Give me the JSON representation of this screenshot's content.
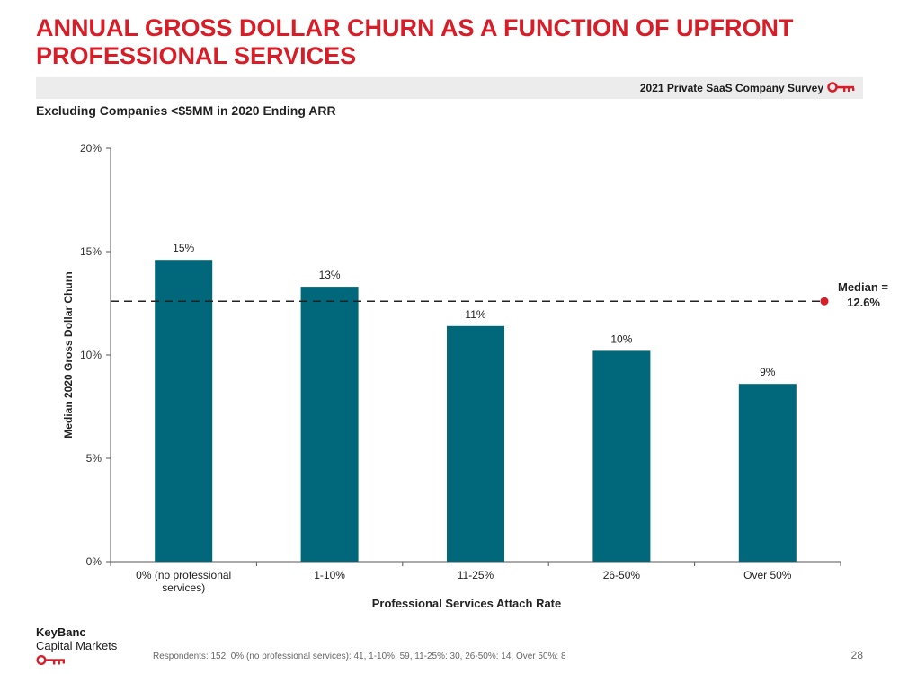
{
  "header": {
    "title": "ANNUAL GROSS DOLLAR CHURN AS A FUNCTION OF UPFRONT PROFESSIONAL SERVICES",
    "survey_label": "2021 Private SaaS Company Survey",
    "subtitle": "Excluding Companies <$5MM in 2020 Ending ARR"
  },
  "colors": {
    "title": "#d71e28",
    "bar": "#00687a",
    "median_marker": "#d71e28",
    "band": "#ececec"
  },
  "chart_data": {
    "type": "bar",
    "categories": [
      "0% (no professional services)",
      "1-10%",
      "11-25%",
      "26-50%",
      "Over 50%"
    ],
    "series": [
      {
        "values": [
          14.6,
          13.3,
          11.4,
          10.2,
          8.6
        ]
      }
    ],
    "data_labels": [
      "15%",
      "13%",
      "11%",
      "10%",
      "9%"
    ],
    "xlabel": "Professional Services Attach Rate",
    "ylabel": "Median 2020 Gross Dollar Churn",
    "ylim": [
      0,
      20
    ],
    "yticks": [
      0,
      5,
      10,
      15,
      20
    ],
    "ytick_labels": [
      "0%",
      "5%",
      "10%",
      "15%",
      "20%"
    ],
    "grid": false,
    "reference_line": {
      "value": 12.6,
      "label_line1": "Median =",
      "label_line2": "12.6%",
      "style": "dashed"
    }
  },
  "footer": {
    "logo_line1": "KeyBanc",
    "logo_line2": "Capital Markets",
    "footnote": "Respondents: 152; 0% (no professional services): 41, 1-10%: 59, 11-25%: 30, 26-50%: 14, Over 50%: 8",
    "page_number": "28"
  }
}
